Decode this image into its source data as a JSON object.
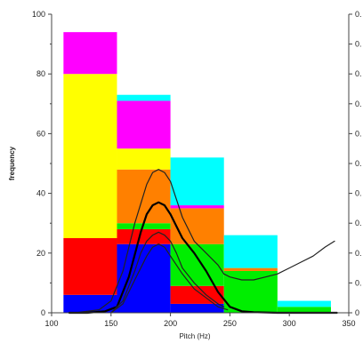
{
  "chart_data": {
    "type": "bar",
    "stacked": true,
    "xlabel": "Pitch (Hz)",
    "ylabel": "frequency",
    "x_ticks": [
      100,
      150,
      200,
      250,
      300,
      350
    ],
    "y_ticks": [
      0,
      20,
      40,
      60,
      80,
      100
    ],
    "xlim": [
      100,
      350
    ],
    "ylim": [
      0,
      100
    ],
    "right_axis_tick_labels": [
      "0",
      "0.",
      "0.",
      "0.",
      "0.",
      "0.",
      "0.",
      "0.",
      "0.",
      "0.",
      "0."
    ],
    "bins": [
      {
        "x0": 110,
        "x1": 155,
        "segments": [
          {
            "color": "#0000ff",
            "value": 6
          },
          {
            "color": "#ff0000",
            "value": 19
          },
          {
            "color": "#ffff00",
            "value": 55
          },
          {
            "color": "#ff00ff",
            "value": 14
          }
        ]
      },
      {
        "x0": 155,
        "x1": 200,
        "segments": [
          {
            "color": "#0000ff",
            "value": 23
          },
          {
            "color": "#ff0000",
            "value": 5
          },
          {
            "color": "#00ee00",
            "value": 2
          },
          {
            "color": "#ff8000",
            "value": 18
          },
          {
            "color": "#ffff00",
            "value": 7
          },
          {
            "color": "#ff00ff",
            "value": 16
          },
          {
            "color": "#00ffff",
            "value": 2
          }
        ]
      },
      {
        "x0": 200,
        "x1": 245,
        "segments": [
          {
            "color": "#0000ff",
            "value": 3
          },
          {
            "color": "#ff0000",
            "value": 6
          },
          {
            "color": "#00ee00",
            "value": 14
          },
          {
            "color": "#ff8000",
            "value": 12
          },
          {
            "color": "#ff00ff",
            "value": 1
          },
          {
            "color": "#00ffff",
            "value": 16
          }
        ]
      },
      {
        "x0": 245,
        "x1": 290,
        "segments": [
          {
            "color": "#00ee00",
            "value": 14
          },
          {
            "color": "#ff8000",
            "value": 1
          },
          {
            "color": "#00ffff",
            "value": 11
          }
        ]
      },
      {
        "x0": 290,
        "x1": 335,
        "segments": [
          {
            "color": "#00ee00",
            "value": 2
          },
          {
            "color": "#00ffff",
            "value": 2
          }
        ]
      }
    ],
    "curves": [
      {
        "color": "#222222",
        "width": 1.2,
        "x": [
          120,
          140,
          150,
          160,
          170,
          180,
          185,
          190,
          195,
          200,
          205,
          210,
          220,
          230,
          240,
          245,
          250,
          260,
          270,
          280,
          290,
          300,
          310,
          320,
          330,
          338
        ],
        "y": [
          0,
          1,
          4,
          14,
          30,
          43,
          47,
          48,
          47,
          44,
          38,
          32,
          24,
          20,
          16,
          13,
          12,
          11,
          11,
          12,
          13,
          15,
          17,
          19,
          22,
          24
        ]
      },
      {
        "color": "#000000",
        "width": 2.2,
        "x": [
          115,
          130,
          145,
          155,
          165,
          175,
          180,
          185,
          190,
          195,
          200,
          205,
          210,
          220,
          230,
          240,
          250,
          260,
          270,
          290,
          310,
          330,
          340
        ],
        "y": [
          0,
          0,
          0.5,
          2,
          12,
          27,
          33,
          36,
          37,
          36,
          33,
          29,
          25,
          20,
          14,
          7,
          2,
          0.5,
          0.2,
          0,
          0,
          0,
          0
        ]
      },
      {
        "color": "#222222",
        "width": 1.2,
        "x": [
          150,
          160,
          170,
          175,
          180,
          185,
          190,
          195,
          200,
          205,
          210,
          220,
          230,
          240,
          245
        ],
        "y": [
          0,
          4,
          14,
          20,
          24,
          26,
          27,
          26,
          24,
          20,
          15,
          10,
          6,
          3,
          2
        ]
      },
      {
        "color": "#222222",
        "width": 1.2,
        "x": [
          150,
          160,
          170,
          180,
          185,
          190,
          195,
          200,
          210,
          220,
          230,
          240,
          248
        ],
        "y": [
          0,
          3,
          11,
          19,
          22,
          23,
          22,
          19,
          13,
          8,
          5,
          2,
          1
        ]
      }
    ]
  }
}
